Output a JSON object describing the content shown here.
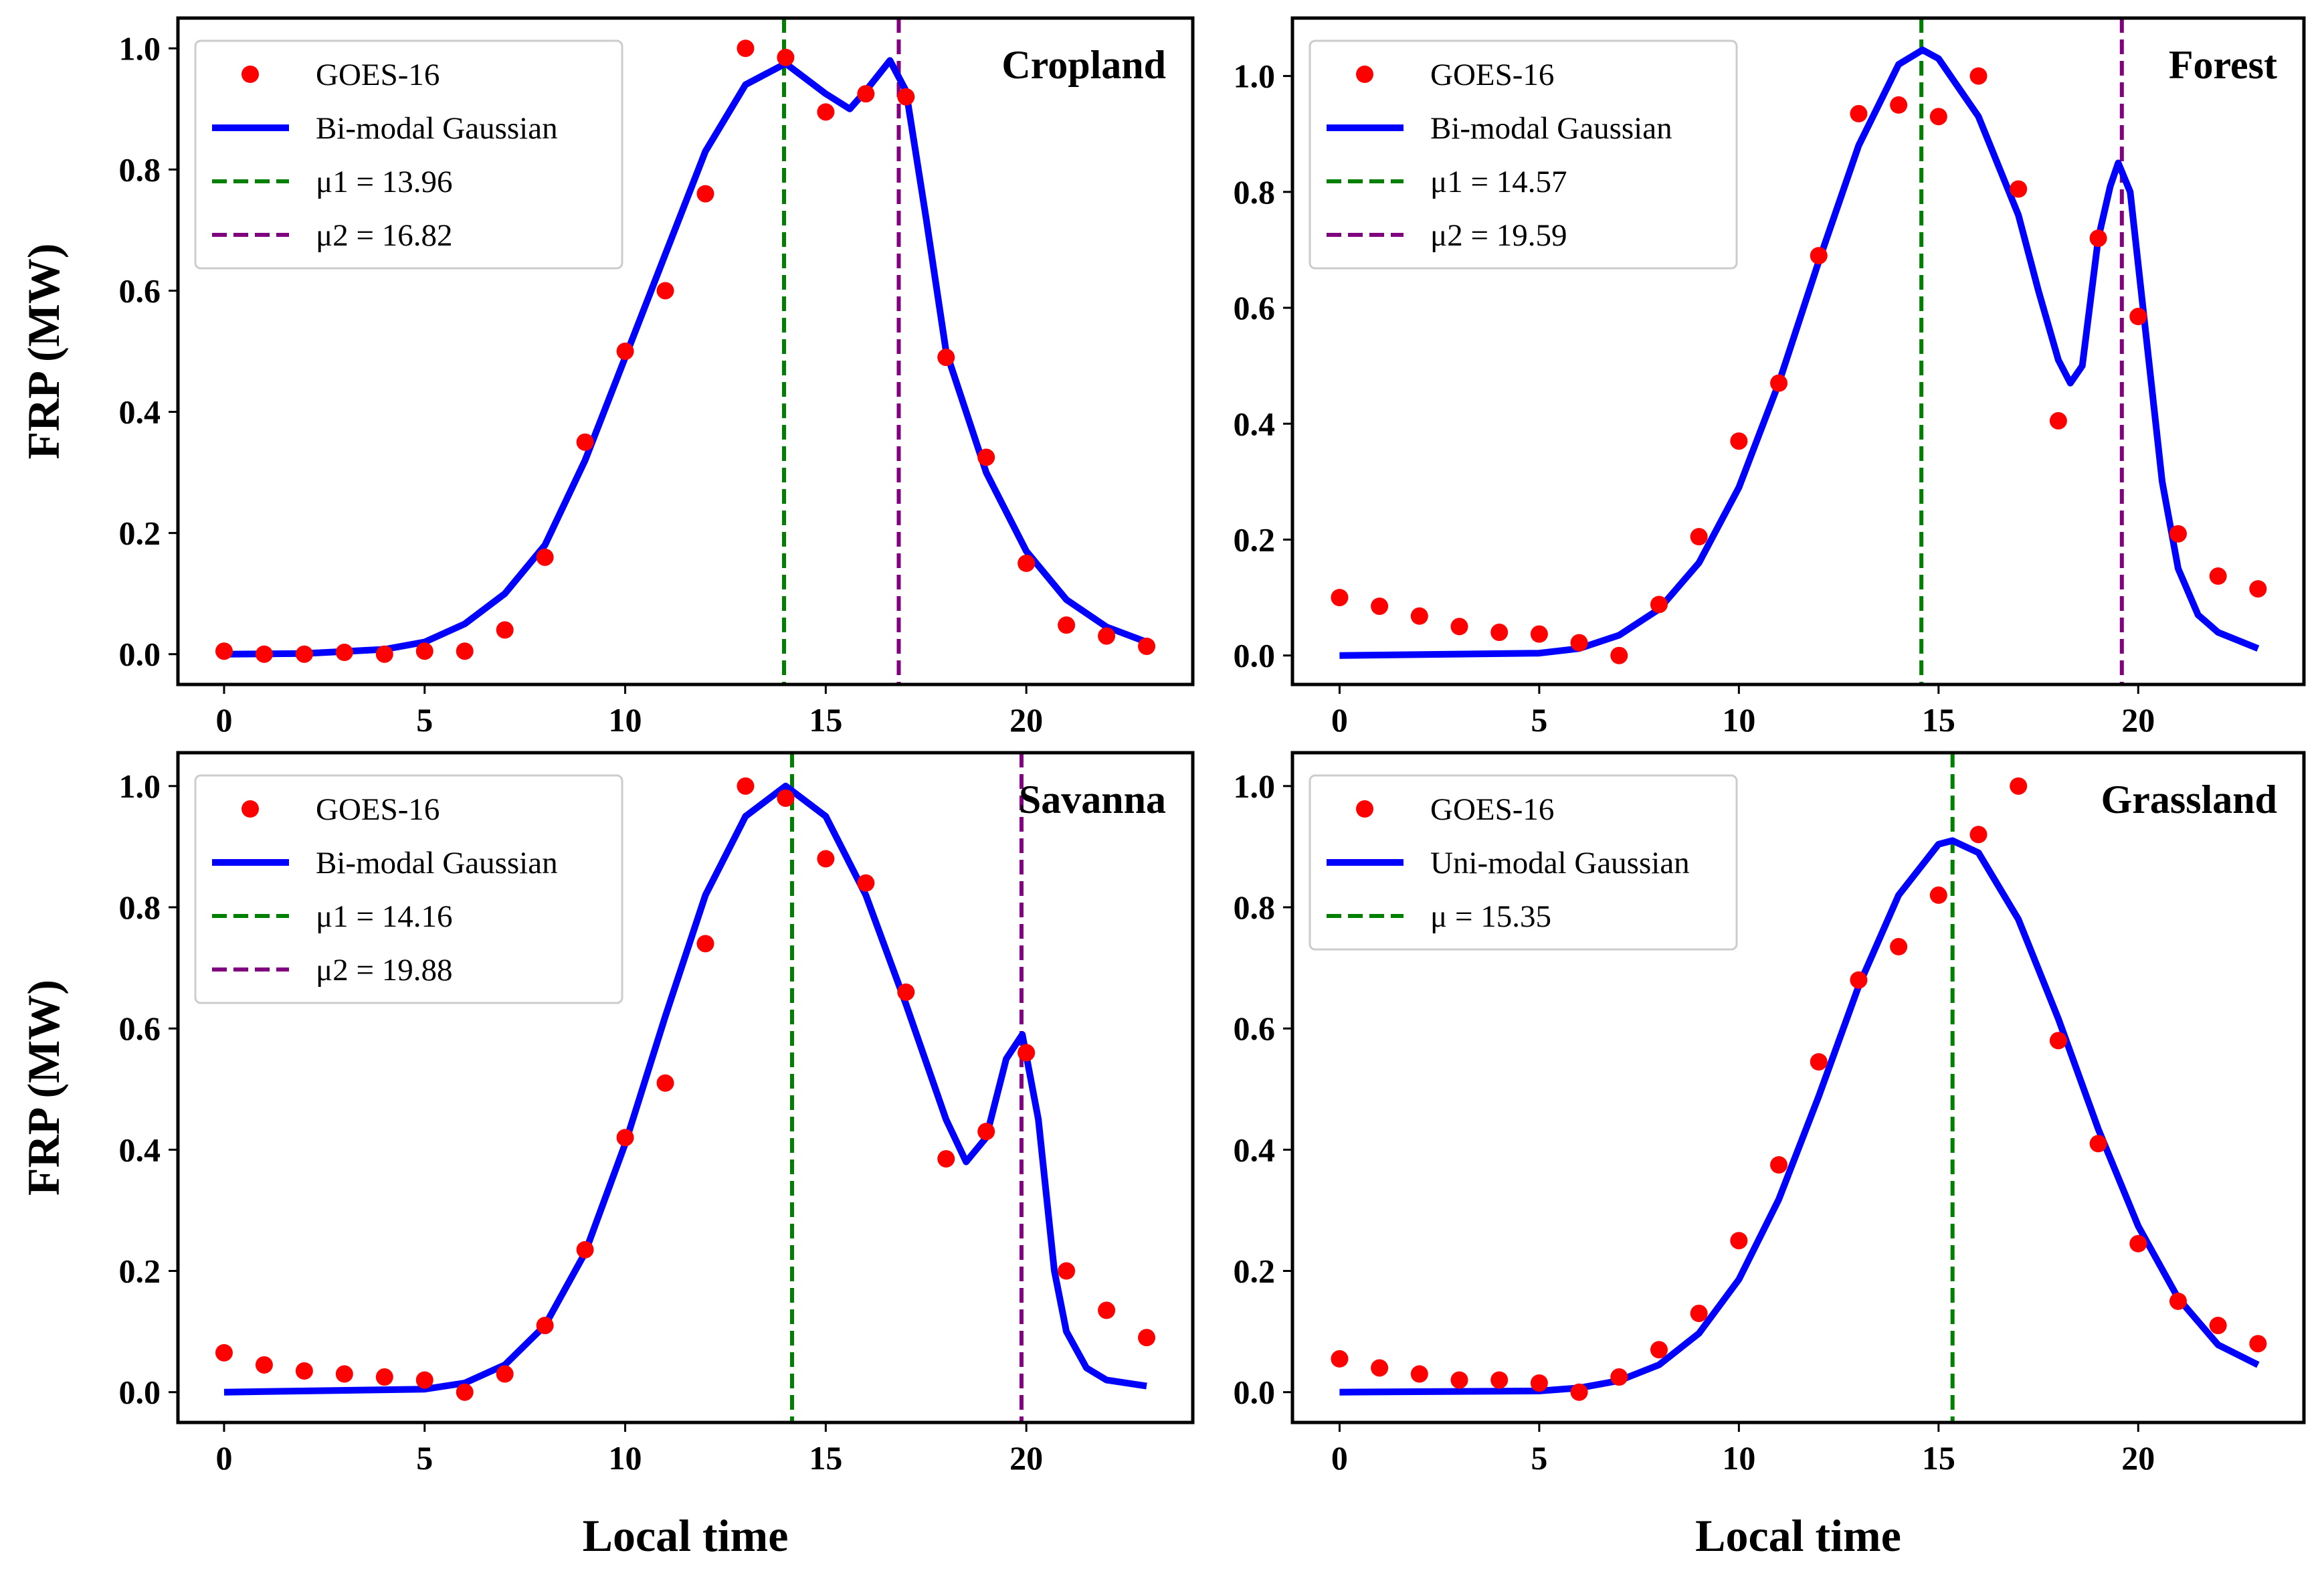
{
  "colors": {
    "points": "#ff0000",
    "curve": "#0000ff",
    "mu1": "#008000",
    "mu2": "#800080",
    "legend_border": "#cccccc"
  },
  "chart_data": [
    {
      "type": "scatter+line",
      "title": "Cropland",
      "ylabel": "FRP (MW)",
      "xlabel": "",
      "xlim": [
        -1.15,
        24.15
      ],
      "ylim": [
        -0.05,
        1.05
      ],
      "xticks": [
        0,
        5,
        10,
        15,
        20
      ],
      "yticks": [
        "0.0",
        "0.2",
        "0.4",
        "0.6",
        "0.8",
        "1.0"
      ],
      "grid": false,
      "legend_position": "top-left",
      "scatter": {
        "name": "GOES-16",
        "x": [
          0,
          1,
          2,
          3,
          4,
          5,
          6,
          7,
          8,
          9,
          10,
          11,
          12,
          13,
          14,
          15,
          16,
          17,
          18,
          19,
          20,
          21,
          22,
          23
        ],
        "y": [
          0.005,
          0,
          0,
          0.003,
          0,
          0.005,
          0.005,
          0.04,
          0.16,
          0.35,
          0.5,
          0.6,
          0.76,
          1.0,
          0.985,
          0.895,
          0.925,
          0.92,
          0.49,
          0.325,
          0.15,
          0.048,
          0.03,
          0.013
        ]
      },
      "curve": {
        "name": "Bi-modal Gaussian",
        "x": [
          0,
          2,
          4,
          5,
          6,
          7,
          8,
          9,
          10,
          11,
          12,
          13,
          14,
          15,
          15.6,
          16,
          16.6,
          17,
          17.5,
          18,
          19,
          20,
          21,
          22,
          23
        ],
        "y": [
          0,
          0.001,
          0.008,
          0.02,
          0.05,
          0.1,
          0.18,
          0.32,
          0.49,
          0.66,
          0.83,
          0.94,
          0.975,
          0.925,
          0.9,
          0.93,
          0.98,
          0.93,
          0.72,
          0.5,
          0.3,
          0.17,
          0.09,
          0.045,
          0.02
        ]
      },
      "vlines": [
        {
          "name": "μ1 = 13.96",
          "x": 13.96,
          "color": "mu1"
        },
        {
          "name": "μ2 = 16.82",
          "x": 16.82,
          "color": "mu2"
        }
      ]
    },
    {
      "type": "scatter+line",
      "title": "Forest",
      "ylabel": "",
      "xlabel": "",
      "xlim": [
        -1.18,
        24.15
      ],
      "ylim": [
        -0.05,
        1.1
      ],
      "xticks": [
        0,
        5,
        10,
        15,
        20
      ],
      "yticks": [
        "0.0",
        "0.2",
        "0.4",
        "0.6",
        "0.8",
        "1.0"
      ],
      "grid": false,
      "legend_position": "top-left",
      "scatter": {
        "name": "GOES-16",
        "x": [
          0,
          1,
          2,
          3,
          4,
          5,
          6,
          7,
          8,
          9,
          10,
          11,
          12,
          13,
          14,
          15,
          16,
          17,
          18,
          19,
          20,
          21,
          22,
          23
        ],
        "y": [
          0.1,
          0.085,
          0.068,
          0.05,
          0.04,
          0.037,
          0.022,
          0,
          0.088,
          0.205,
          0.37,
          0.47,
          0.69,
          0.935,
          0.95,
          0.93,
          1.0,
          0.805,
          0.405,
          0.72,
          0.585,
          0.21,
          0.137,
          0.115
        ]
      },
      "curve": {
        "name": "Bi-modal Gaussian",
        "x": [
          0,
          5,
          6,
          7,
          8,
          9,
          10,
          11,
          12,
          13,
          14,
          14.6,
          15,
          16,
          17,
          17.5,
          18,
          18.3,
          18.6,
          19,
          19.3,
          19.5,
          19.8,
          20.2,
          20.6,
          21,
          21.5,
          22,
          23
        ],
        "y": [
          0,
          0.004,
          0.012,
          0.035,
          0.08,
          0.16,
          0.29,
          0.47,
          0.68,
          0.88,
          1.02,
          1.045,
          1.03,
          0.93,
          0.76,
          0.63,
          0.51,
          0.47,
          0.5,
          0.72,
          0.81,
          0.85,
          0.8,
          0.55,
          0.3,
          0.15,
          0.07,
          0.04,
          0.012
        ]
      },
      "vlines": [
        {
          "name": "μ1 = 14.57",
          "x": 14.57,
          "color": "mu1"
        },
        {
          "name": "μ2 = 19.59",
          "x": 19.59,
          "color": "mu2"
        }
      ]
    },
    {
      "type": "scatter+line",
      "title": "Savanna",
      "ylabel": "FRP (MW)",
      "xlabel": "Local time",
      "xlim": [
        -1.15,
        24.15
      ],
      "ylim": [
        -0.05,
        1.055
      ],
      "xticks": [
        0,
        5,
        10,
        15,
        20
      ],
      "yticks": [
        "0.0",
        "0.2",
        "0.4",
        "0.6",
        "0.8",
        "1.0"
      ],
      "grid": false,
      "legend_position": "top-left",
      "scatter": {
        "name": "GOES-16",
        "x": [
          0,
          1,
          2,
          3,
          4,
          5,
          6,
          7,
          8,
          9,
          10,
          11,
          12,
          13,
          14,
          15,
          16,
          17,
          18,
          19,
          20,
          21,
          22,
          23
        ],
        "y": [
          0.065,
          0.045,
          0.035,
          0.03,
          0.025,
          0.02,
          0,
          0.03,
          0.11,
          0.235,
          0.42,
          0.51,
          0.74,
          1.0,
          0.98,
          0.88,
          0.84,
          0.66,
          0.385,
          0.43,
          0.56,
          0.2,
          0.135,
          0.09
        ]
      },
      "curve": {
        "name": "Bi-modal Gaussian",
        "x": [
          0,
          5,
          6,
          7,
          8,
          9,
          10,
          11,
          12,
          13,
          14,
          15,
          16,
          17,
          18,
          18.5,
          19,
          19.5,
          19.9,
          20.3,
          20.7,
          21,
          21.5,
          22,
          23
        ],
        "y": [
          0,
          0.005,
          0.015,
          0.045,
          0.11,
          0.23,
          0.41,
          0.62,
          0.82,
          0.95,
          1.0,
          0.95,
          0.82,
          0.64,
          0.45,
          0.38,
          0.42,
          0.55,
          0.59,
          0.45,
          0.2,
          0.1,
          0.04,
          0.02,
          0.01
        ]
      },
      "vlines": [
        {
          "name": "μ1 = 14.16",
          "x": 14.16,
          "color": "mu1"
        },
        {
          "name": "μ2 = 19.88",
          "x": 19.88,
          "color": "mu2"
        }
      ]
    },
    {
      "type": "scatter+line",
      "title": "Grassland",
      "ylabel": "",
      "xlabel": "Local time",
      "xlim": [
        -1.18,
        24.15
      ],
      "ylim": [
        -0.05,
        1.055
      ],
      "xticks": [
        0,
        5,
        10,
        15,
        20
      ],
      "yticks": [
        "0.0",
        "0.2",
        "0.4",
        "0.6",
        "0.8",
        "1.0"
      ],
      "grid": false,
      "legend_position": "top-left",
      "scatter": {
        "name": "GOES-16",
        "x": [
          0,
          1,
          2,
          3,
          4,
          5,
          6,
          7,
          8,
          9,
          10,
          11,
          12,
          13,
          14,
          15,
          16,
          17,
          18,
          19,
          20,
          21,
          22,
          23
        ],
        "y": [
          0.055,
          0.04,
          0.03,
          0.02,
          0.02,
          0.015,
          0,
          0.025,
          0.07,
          0.13,
          0.25,
          0.375,
          0.545,
          0.68,
          0.735,
          0.82,
          0.92,
          1.0,
          0.58,
          0.41,
          0.245,
          0.15,
          0.11,
          0.08
        ]
      },
      "curve": {
        "name": "Uni-modal Gaussian",
        "x": [
          0,
          5,
          6,
          7,
          8,
          9,
          10,
          11,
          12,
          13,
          14,
          15,
          15.35,
          16,
          17,
          18,
          19,
          20,
          21,
          22,
          23
        ],
        "y": [
          0,
          0.002,
          0.007,
          0.019,
          0.045,
          0.097,
          0.186,
          0.318,
          0.488,
          0.67,
          0.82,
          0.904,
          0.91,
          0.89,
          0.78,
          0.616,
          0.434,
          0.274,
          0.155,
          0.078,
          0.045
        ]
      },
      "vlines": [
        {
          "name": "μ = 15.35",
          "x": 15.35,
          "color": "mu1"
        }
      ]
    }
  ]
}
